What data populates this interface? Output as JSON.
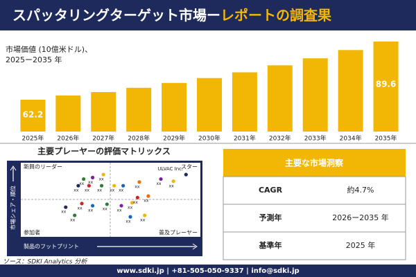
{
  "header": {
    "title_white": "スパッタリングターゲット市場ー",
    "title_yellow": "レポートの調査果"
  },
  "chart_data": {
    "type": "bar",
    "subtitle": [
      "市場価値 (10億米ドル)、",
      "2025ー2035 年"
    ],
    "categories": [
      "2025年",
      "2026年",
      "2027年",
      "2028年",
      "2029年",
      "2030年",
      "2031年",
      "2032年",
      "2033年",
      "2034年",
      "2035年"
    ],
    "values": [
      62.2,
      64.2,
      65.8,
      67.8,
      70.1,
      72.4,
      75.1,
      78.4,
      81.7,
      85.6,
      89.6
    ],
    "color": "#f2b705"
  },
  "matrix": {
    "title": "主要プレーヤーの評価マトリックス",
    "quadrants": [
      "新興のリーダー",
      "スター",
      "参加者",
      "普及プレーヤー"
    ],
    "y_label": "市場シェア・順位",
    "x_label": "製品のフットプリント",
    "points": [
      {
        "label": "xx",
        "x": 35,
        "y": 78,
        "color": "#2e7d32"
      },
      {
        "label": "xx",
        "x": 40,
        "y": 80,
        "color": "#7b1fa2"
      },
      {
        "label": "xx",
        "x": 46,
        "y": 84,
        "color": "#f2b705"
      },
      {
        "label": "xx",
        "x": 32,
        "y": 69,
        "color": "#1f2a5c"
      },
      {
        "label": "xx",
        "x": 38,
        "y": 69,
        "color": "#c62828"
      },
      {
        "label": "xx",
        "x": 45,
        "y": 69,
        "color": "#2e7d32"
      },
      {
        "label": "xx",
        "x": 52,
        "y": 69,
        "color": "#f2b705"
      },
      {
        "label": "xx",
        "x": 57,
        "y": 69,
        "color": "#1565c0"
      },
      {
        "label": "xx",
        "x": 66,
        "y": 74,
        "color": "#ef6c00"
      },
      {
        "label": "xx",
        "x": 78,
        "y": 78,
        "color": "#7b1fa2"
      },
      {
        "label": "xx",
        "x": 85,
        "y": 75,
        "color": "#f2b705"
      },
      {
        "label": "xx",
        "x": 25,
        "y": 40,
        "color": "#1f2a5c"
      },
      {
        "label": "xx",
        "x": 34,
        "y": 45,
        "color": "#c62828"
      },
      {
        "label": "xx",
        "x": 40,
        "y": 42,
        "color": "#1565c0"
      },
      {
        "label": "xx",
        "x": 48,
        "y": 44,
        "color": "#2e7d32"
      },
      {
        "label": "xx",
        "x": 56,
        "y": 42,
        "color": "#7b1fa2"
      },
      {
        "label": "xx",
        "x": 62,
        "y": 46,
        "color": "#f2b705"
      },
      {
        "label": "xx",
        "x": 65,
        "y": 53,
        "color": "#c62828"
      },
      {
        "label": "xx",
        "x": 71,
        "y": 55,
        "color": "#ef6c00"
      },
      {
        "label": "xx",
        "x": 61,
        "y": 27,
        "color": "#1565c0"
      },
      {
        "label": "xx",
        "x": 69,
        "y": 29,
        "color": "#f2b705"
      },
      {
        "label": "xx",
        "x": 30,
        "y": 29,
        "color": "#2e7d32"
      },
      {
        "label": "ULVAC Inc.",
        "x": 92,
        "y": 84,
        "color": "#1f2a5c"
      }
    ]
  },
  "insights": {
    "title": "主要な市場洞察",
    "rows": [
      [
        "CAGR",
        "約4.7%"
      ],
      [
        "予測年",
        "2026ー2035 年"
      ],
      [
        "基準年",
        "2025 年"
      ]
    ]
  },
  "source": "ソース：SDKI Analytics 分析",
  "footer": "www.sdki.jp | +81-505-050-9337 | info@sdki.jp"
}
